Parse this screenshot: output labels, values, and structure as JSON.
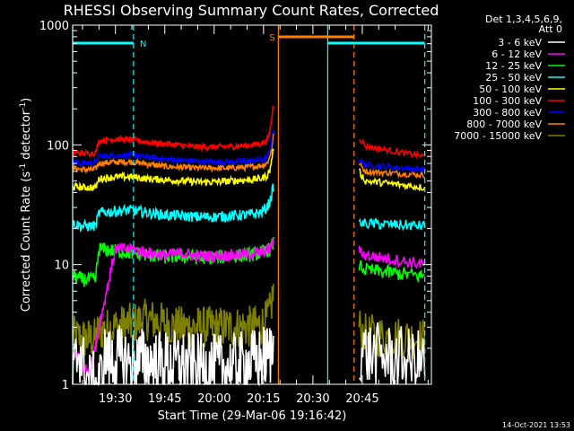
{
  "chart_data": {
    "type": "line",
    "title": "RHESSI Observing Summary Count Rates, Corrected",
    "xlabel": "Start Time (29-Mar-06 19:16:42)",
    "ylabel": "Corrected Count Rate (s",
    "ylabel_sup1": "-1",
    "ylabel_mid": " detector",
    "ylabel_sup2": "-1",
    "ylabel_end": ")",
    "yscale": "log",
    "ylim": [
      1,
      1000
    ],
    "y_ticks": [
      {
        "value": 1,
        "label": "1"
      },
      {
        "value": 10,
        "label": "10"
      },
      {
        "value": 100,
        "label": "100"
      },
      {
        "value": 1000,
        "label": "1000"
      }
    ],
    "x_range_min": [
      1157,
      1266
    ],
    "x_ticks": [
      {
        "value": 1170,
        "label": "19:30"
      },
      {
        "value": 1185,
        "label": "19:45"
      },
      {
        "value": 1200,
        "label": "20:00"
      },
      {
        "value": 1215,
        "label": "20:15"
      },
      {
        "value": 1230,
        "label": "20:30"
      },
      {
        "value": 1245,
        "label": "20:45"
      }
    ],
    "legend": {
      "placement": "right",
      "header_lines": [
        "Det 1,3,4,5,6,9,",
        "Att 0"
      ],
      "entries": [
        {
          "label": "3 - 6 keV",
          "color": "#ffffff"
        },
        {
          "label": "6 - 12 keV",
          "color": "#ff00ff"
        },
        {
          "label": "12 - 25 keV",
          "color": "#00ff00"
        },
        {
          "label": "25 - 50 keV",
          "color": "#00ffff"
        },
        {
          "label": "50 - 100 keV",
          "color": "#ffff00"
        },
        {
          "label": "100 - 300 keV",
          "color": "#ff0000"
        },
        {
          "label": "300 - 800 keV",
          "color": "#0000ff"
        },
        {
          "label": "800 - 7000 keV",
          "color": "#ff8000"
        },
        {
          "label": "7000 - 15000 keV",
          "color": "#808000"
        }
      ]
    },
    "flag_bars": [
      {
        "label": "N",
        "color": "#00ffff",
        "x_start": 1157,
        "x_end": 1175.5
      },
      {
        "label": "S",
        "color": "#ff8000",
        "x_start": 1219.5,
        "x_end": 1242.5
      },
      {
        "label": "",
        "color": "#00ffff",
        "x_start": 1234.5,
        "x_end": 1264
      }
    ],
    "event_lines": [
      {
        "x": 1157,
        "color": "#00ffff",
        "style": "solid"
      },
      {
        "x": 1175.5,
        "color": "#00ffff",
        "style": "dashed"
      },
      {
        "x": 1219.5,
        "color": "#ff8000",
        "style": "solid"
      },
      {
        "x": 1234.5,
        "color": "#00ffff",
        "style": "solid"
      },
      {
        "x": 1242.5,
        "color": "#ff8000",
        "style": "dashed"
      },
      {
        "x": 1264,
        "color": "#00ffff",
        "style": "dashed"
      }
    ],
    "series": [
      {
        "name": "3 - 6 keV",
        "color": "#ffffff",
        "noise": 0.28,
        "points": [
          [
            1157,
            1
          ],
          [
            1158,
            1.6
          ],
          [
            1159,
            2
          ],
          [
            1160,
            1.5
          ],
          [
            1161,
            1.2
          ],
          [
            1162,
            1
          ],
          [
            1163,
            1
          ],
          [
            1164,
            1
          ],
          [
            1165,
            1
          ],
          [
            1166,
            1.2
          ],
          [
            1167,
            1.8
          ],
          [
            1168,
            1.6
          ],
          [
            1169,
            1.5
          ],
          [
            1170,
            1.7
          ],
          [
            1172,
            1.6
          ],
          [
            1175,
            1.5
          ],
          [
            1178,
            1.6
          ],
          [
            1182,
            1.5
          ],
          [
            1186,
            1.5
          ],
          [
            1190,
            1.5
          ],
          [
            1195,
            1.4
          ],
          [
            1200,
            1.4
          ],
          [
            1205,
            1.4
          ],
          [
            1210,
            1.5
          ],
          [
            1214,
            1.6
          ],
          [
            1217,
            1.8
          ],
          [
            1218,
            2
          ]
        ]
      },
      {
        "name": "6 - 12 keV",
        "color": "#ff00ff",
        "noise": 0.05,
        "points": [
          [
            1157,
            1.8
          ],
          [
            1158,
            1.8
          ],
          [
            1162,
            1.2
          ],
          [
            1170,
            13.5
          ],
          [
            1175,
            13.5
          ],
          [
            1180,
            12.5
          ],
          [
            1185,
            12
          ],
          [
            1190,
            12.5
          ],
          [
            1195,
            11.8
          ],
          [
            1200,
            11.8
          ],
          [
            1205,
            12
          ],
          [
            1210,
            12.2
          ],
          [
            1214,
            12.5
          ],
          [
            1217,
            13.5
          ],
          [
            1218,
            16
          ]
        ]
      },
      {
        "name": "12 - 25 keV",
        "color": "#00ff00",
        "noise": 0.06,
        "points": [
          [
            1157,
            8
          ],
          [
            1160,
            7.5
          ],
          [
            1163,
            7.5
          ],
          [
            1164,
            7.5
          ],
          [
            1165,
            13.5
          ],
          [
            1170,
            13
          ],
          [
            1175,
            12.5
          ],
          [
            1180,
            12
          ],
          [
            1185,
            11.6
          ],
          [
            1190,
            11.8
          ],
          [
            1195,
            11.5
          ],
          [
            1200,
            11.5
          ],
          [
            1205,
            11.8
          ],
          [
            1210,
            12
          ],
          [
            1214,
            12.5
          ],
          [
            1217,
            13.5
          ],
          [
            1218,
            15
          ]
        ]
      },
      {
        "name": "25 - 50 keV",
        "color": "#00ffff",
        "noise": 0.045,
        "points": [
          [
            1157,
            22
          ],
          [
            1160,
            21
          ],
          [
            1163,
            21
          ],
          [
            1164,
            21
          ],
          [
            1165,
            27
          ],
          [
            1170,
            28
          ],
          [
            1175,
            28.5
          ],
          [
            1180,
            27
          ],
          [
            1185,
            26
          ],
          [
            1190,
            25.5
          ],
          [
            1195,
            25
          ],
          [
            1200,
            25
          ],
          [
            1205,
            25.5
          ],
          [
            1210,
            26
          ],
          [
            1214,
            27
          ],
          [
            1216,
            30
          ],
          [
            1217,
            34
          ],
          [
            1218,
            45
          ]
        ]
      },
      {
        "name": "50 - 100 keV",
        "color": "#ffff00",
        "noise": 0.03,
        "points": [
          [
            1157,
            45
          ],
          [
            1160,
            44
          ],
          [
            1163,
            44
          ],
          [
            1164,
            44
          ],
          [
            1165,
            52
          ],
          [
            1170,
            54
          ],
          [
            1175,
            54
          ],
          [
            1180,
            52
          ],
          [
            1185,
            51
          ],
          [
            1190,
            50
          ],
          [
            1195,
            49
          ],
          [
            1200,
            49
          ],
          [
            1205,
            50
          ],
          [
            1210,
            51
          ],
          [
            1214,
            52
          ],
          [
            1216,
            55
          ],
          [
            1217,
            62
          ],
          [
            1218,
            95
          ]
        ]
      },
      {
        "name": "100 - 300 keV",
        "color": "#ff0000",
        "noise": 0.025,
        "points": [
          [
            1157,
            87
          ],
          [
            1160,
            85
          ],
          [
            1163,
            85
          ],
          [
            1164,
            86
          ],
          [
            1165,
            108
          ],
          [
            1170,
            112
          ],
          [
            1175,
            110
          ],
          [
            1180,
            105
          ],
          [
            1185,
            102
          ],
          [
            1190,
            99
          ],
          [
            1195,
            96
          ],
          [
            1200,
            96
          ],
          [
            1205,
            97
          ],
          [
            1210,
            99
          ],
          [
            1214,
            102
          ],
          [
            1216,
            108
          ],
          [
            1217,
            130
          ],
          [
            1218,
            220
          ]
        ]
      },
      {
        "name": "300 - 800 keV",
        "color": "#0000ff",
        "noise": 0.025,
        "points": [
          [
            1157,
            72
          ],
          [
            1160,
            70
          ],
          [
            1163,
            71
          ],
          [
            1164,
            72
          ],
          [
            1165,
            80
          ],
          [
            1170,
            82
          ],
          [
            1175,
            82
          ],
          [
            1180,
            79
          ],
          [
            1185,
            76
          ],
          [
            1190,
            74
          ],
          [
            1195,
            73
          ],
          [
            1200,
            72
          ],
          [
            1205,
            72
          ],
          [
            1210,
            73
          ],
          [
            1214,
            75
          ],
          [
            1216,
            78
          ],
          [
            1217,
            90
          ],
          [
            1218,
            140
          ]
        ]
      },
      {
        "name": "800 - 7000 keV",
        "color": "#ff8000",
        "noise": 0.025,
        "points": [
          [
            1157,
            64
          ],
          [
            1160,
            62
          ],
          [
            1163,
            62
          ],
          [
            1164,
            63
          ],
          [
            1165,
            70
          ],
          [
            1170,
            72
          ],
          [
            1175,
            72
          ],
          [
            1180,
            69
          ],
          [
            1185,
            66
          ],
          [
            1190,
            65
          ],
          [
            1195,
            64
          ],
          [
            1200,
            64
          ],
          [
            1205,
            64
          ],
          [
            1210,
            65
          ],
          [
            1214,
            67
          ],
          [
            1216,
            70
          ],
          [
            1217,
            80
          ],
          [
            1218,
            120
          ]
        ]
      },
      {
        "name": "7000 - 15000 keV",
        "color": "#808000",
        "noise": 0.18,
        "points": [
          [
            1157,
            2.5
          ],
          [
            1160,
            2.4
          ],
          [
            1164,
            2.4
          ],
          [
            1165,
            2.8
          ],
          [
            1170,
            3
          ],
          [
            1175,
            3.2
          ],
          [
            1180,
            3.5
          ],
          [
            1185,
            3.2
          ],
          [
            1190,
            3
          ],
          [
            1195,
            3
          ],
          [
            1200,
            3
          ],
          [
            1205,
            3
          ],
          [
            1210,
            3
          ],
          [
            1214,
            3.1
          ],
          [
            1216,
            3.4
          ],
          [
            1217,
            4
          ],
          [
            1218,
            6
          ]
        ]
      }
    ],
    "segment2": {
      "x_range_min": [
        1244,
        1264
      ],
      "start_values": [
        1.8,
        12,
        9,
        22,
        50,
        97,
        68,
        60,
        2.6
      ],
      "end_values": [
        1.5,
        10,
        8,
        21,
        44,
        80,
        62,
        56,
        2.4
      ],
      "peak_values": [
        2,
        13,
        10,
        22,
        60,
        115,
        75,
        70,
        3
      ]
    }
  },
  "footer": {
    "date_stamp": "14-Oct-2021 13:53"
  }
}
